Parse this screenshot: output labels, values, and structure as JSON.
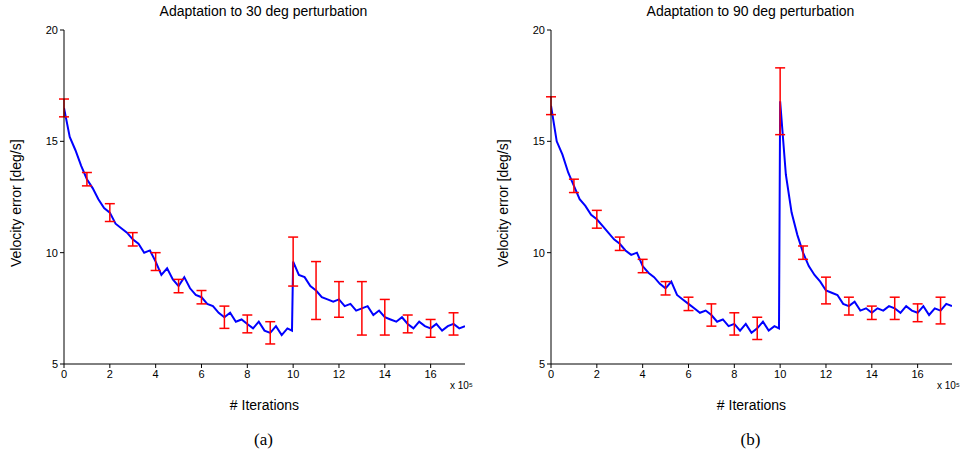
{
  "chart_data": [
    {
      "type": "line",
      "title": "Adaptation to 30 deg perturbation",
      "x_label": "# Iterations",
      "y_label": "Velocity error [deg/s]",
      "x_multiplier": "x 10⁵",
      "caption": "(a)",
      "grid": false,
      "xlim": [
        0,
        17.5
      ],
      "xticks": [
        0,
        2,
        4,
        6,
        8,
        10,
        12,
        14,
        16
      ],
      "ylim": [
        5,
        20
      ],
      "yticks": [
        5,
        10,
        15,
        20
      ],
      "color": "#0000ff",
      "x": [
        0,
        0.25,
        0.5,
        0.75,
        1,
        1.25,
        1.5,
        1.75,
        2,
        2.25,
        2.5,
        2.75,
        3,
        3.25,
        3.5,
        3.75,
        4,
        4.25,
        4.5,
        4.75,
        5,
        5.25,
        5.5,
        5.75,
        6,
        6.25,
        6.5,
        6.75,
        7,
        7.25,
        7.5,
        7.75,
        8,
        8.25,
        8.5,
        8.75,
        9,
        9.25,
        9.5,
        9.75,
        9.95,
        10,
        10.25,
        10.5,
        10.75,
        11,
        11.25,
        11.5,
        11.75,
        12,
        12.25,
        12.5,
        12.75,
        13,
        13.25,
        13.5,
        13.75,
        14,
        14.25,
        14.5,
        14.75,
        15,
        15.25,
        15.5,
        15.75,
        16,
        16.25,
        16.5,
        16.75,
        17,
        17.25,
        17.5
      ],
      "values": [
        16.5,
        15.2,
        14.6,
        13.9,
        13.3,
        12.9,
        12.4,
        12.0,
        11.8,
        11.3,
        11.1,
        10.9,
        10.6,
        10.4,
        10.0,
        10.1,
        9.6,
        9.0,
        9.3,
        8.8,
        8.5,
        8.9,
        8.4,
        8.1,
        8.0,
        7.7,
        7.6,
        7.3,
        7.1,
        7.3,
        6.9,
        7.0,
        6.8,
        6.6,
        6.9,
        6.5,
        6.4,
        6.7,
        6.3,
        6.6,
        6.5,
        9.6,
        9.0,
        8.9,
        8.5,
        8.3,
        8.0,
        7.9,
        7.8,
        7.9,
        7.6,
        7.7,
        7.4,
        7.5,
        7.6,
        7.2,
        7.4,
        7.1,
        7.0,
        6.9,
        7.1,
        6.8,
        6.6,
        6.9,
        6.7,
        6.6,
        6.8,
        6.5,
        6.7,
        6.8,
        6.6,
        6.7
      ],
      "error_bars": {
        "color": "#ff0000",
        "x": [
          0,
          1,
          2,
          3,
          4,
          5,
          6,
          7,
          8,
          9,
          10,
          11,
          12,
          13,
          14,
          15,
          16,
          17
        ],
        "values": [
          16.5,
          13.3,
          11.8,
          10.6,
          9.6,
          8.5,
          8.0,
          7.1,
          6.8,
          6.4,
          9.6,
          8.3,
          7.9,
          7.5,
          7.1,
          6.8,
          6.6,
          6.8
        ],
        "errors": [
          0.4,
          0.3,
          0.4,
          0.3,
          0.4,
          0.3,
          0.3,
          0.5,
          0.4,
          0.5,
          1.1,
          1.3,
          0.8,
          1.2,
          0.8,
          0.4,
          0.4,
          0.5
        ]
      }
    },
    {
      "type": "line",
      "title": "Adaptation to 90 deg perturbation",
      "x_label": "# Iterations",
      "y_label": "Velocity error [deg/s]",
      "x_multiplier": "x 10⁵",
      "caption": "(b)",
      "grid": false,
      "xlim": [
        0,
        17.5
      ],
      "xticks": [
        0,
        2,
        4,
        6,
        8,
        10,
        12,
        14,
        16
      ],
      "ylim": [
        5,
        20
      ],
      "yticks": [
        5,
        10,
        15,
        20
      ],
      "color": "#0000ff",
      "x": [
        0,
        0.25,
        0.5,
        0.75,
        1,
        1.25,
        1.5,
        1.75,
        2,
        2.25,
        2.5,
        2.75,
        3,
        3.25,
        3.5,
        3.75,
        4,
        4.25,
        4.5,
        4.75,
        5,
        5.25,
        5.5,
        5.75,
        6,
        6.25,
        6.5,
        6.75,
        7,
        7.25,
        7.5,
        7.75,
        8,
        8.25,
        8.5,
        8.75,
        9,
        9.25,
        9.5,
        9.75,
        9.95,
        10,
        10.25,
        10.5,
        10.75,
        11,
        11.25,
        11.5,
        11.75,
        12,
        12.25,
        12.5,
        12.75,
        13,
        13.25,
        13.5,
        13.75,
        14,
        14.25,
        14.5,
        14.75,
        15,
        15.25,
        15.5,
        15.75,
        16,
        16.25,
        16.5,
        16.75,
        17,
        17.25,
        17.5
      ],
      "values": [
        16.6,
        15.0,
        14.4,
        13.6,
        13.0,
        12.4,
        12.1,
        11.7,
        11.5,
        11.2,
        10.9,
        10.6,
        10.4,
        10.1,
        9.9,
        10.0,
        9.4,
        9.1,
        8.9,
        8.6,
        8.4,
        8.7,
        8.1,
        7.9,
        7.7,
        7.5,
        7.3,
        7.4,
        7.2,
        6.9,
        7.0,
        6.7,
        6.8,
        6.5,
        6.8,
        6.4,
        6.6,
        6.9,
        6.5,
        6.7,
        6.6,
        16.8,
        13.5,
        11.8,
        10.8,
        10.0,
        9.4,
        9.0,
        8.7,
        8.3,
        8.2,
        8.1,
        7.7,
        7.6,
        7.8,
        7.4,
        7.5,
        7.3,
        7.5,
        7.4,
        7.6,
        7.5,
        7.3,
        7.6,
        7.4,
        7.3,
        7.6,
        7.2,
        7.5,
        7.4,
        7.7,
        7.6
      ],
      "error_bars": {
        "color": "#ff0000",
        "x": [
          0,
          1,
          2,
          3,
          4,
          5,
          6,
          7,
          8,
          9,
          10,
          11,
          12,
          13,
          14,
          15,
          16,
          17
        ],
        "values": [
          16.6,
          13.0,
          11.5,
          10.4,
          9.4,
          8.4,
          7.7,
          7.2,
          6.8,
          6.6,
          16.8,
          10.0,
          8.3,
          7.6,
          7.3,
          7.5,
          7.3,
          7.4
        ],
        "errors": [
          0.4,
          0.3,
          0.4,
          0.3,
          0.3,
          0.3,
          0.3,
          0.5,
          0.5,
          0.5,
          1.5,
          0.3,
          0.6,
          0.4,
          0.3,
          0.5,
          0.4,
          0.6
        ]
      }
    }
  ]
}
